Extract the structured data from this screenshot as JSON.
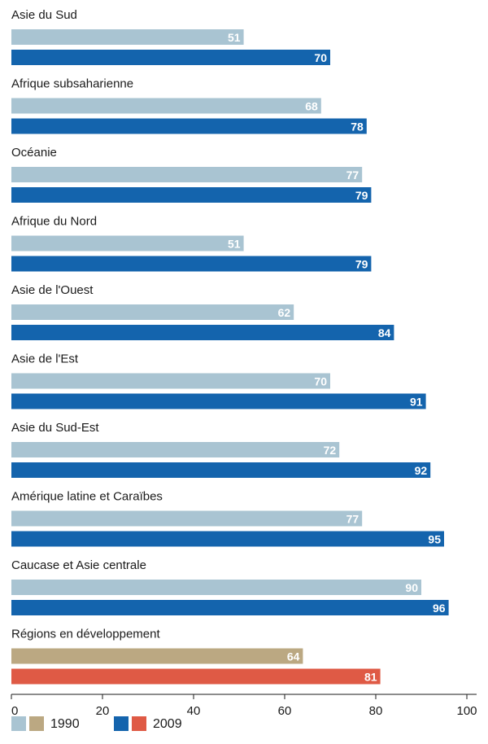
{
  "chart_data": {
    "type": "bar",
    "orientation": "horizontal",
    "categories": [
      "Asie du Sud",
      "Afrique subsaharienne",
      "Océanie",
      "Afrique du Nord",
      "Asie de l'Ouest",
      "Asie de l'Est",
      "Asie du Sud-Est",
      "Amérique latine et Caraïbes",
      "Caucase et Asie centrale",
      "Régions en développement"
    ],
    "series": [
      {
        "name": "1990",
        "values": [
          51,
          68,
          77,
          51,
          62,
          70,
          72,
          77,
          90,
          64
        ]
      },
      {
        "name": "2009",
        "values": [
          70,
          78,
          79,
          79,
          84,
          91,
          92,
          95,
          96,
          81
        ]
      }
    ],
    "xlim": [
      0,
      100
    ],
    "xticks": [
      0,
      20,
      40,
      60,
      80,
      100
    ],
    "grid": false,
    "legend_position": "bottom-left",
    "colors": {
      "1990": "#a9c4d2",
      "2009": "#1464ad",
      "1990_aggregate": "#bba882",
      "2009_aggregate": "#df5a45"
    }
  },
  "legend": {
    "items": [
      {
        "label": "1990",
        "colors": [
          "#a9c4d2",
          "#bba882"
        ]
      },
      {
        "label": "2009",
        "colors": [
          "#1464ad",
          "#df5a45"
        ]
      }
    ]
  }
}
